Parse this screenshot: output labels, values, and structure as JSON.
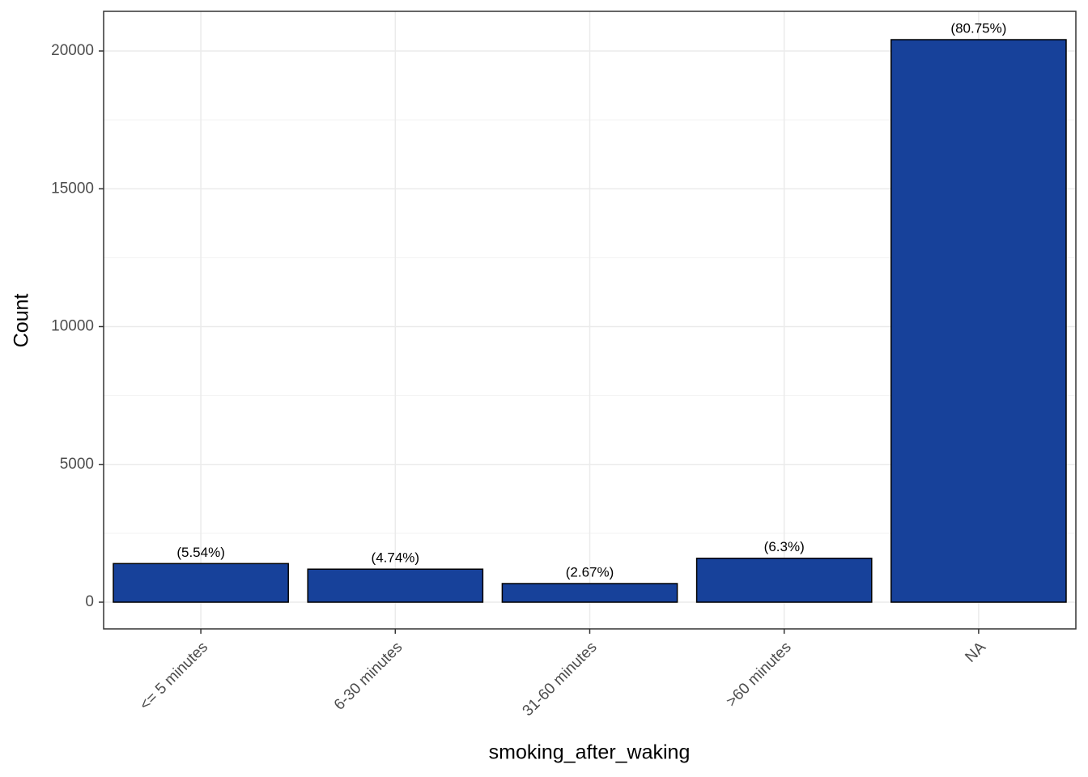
{
  "chart_data": {
    "type": "bar",
    "x_label": "smoking_after_waking",
    "y_label": "Count",
    "categories": [
      "<= 5 minutes",
      "6-30 minutes",
      "31-60 minutes",
      ">60 minutes",
      "NA"
    ],
    "values": [
      1400,
      1198,
      675,
      1593,
      20411
    ],
    "value_labels": [
      "(5.54%)",
      "(4.74%)",
      "(2.67%)",
      "(6.3%)",
      "(80.75%)"
    ],
    "color": "#17419a",
    "ylim": [
      -969,
      21439
    ],
    "yticks": [
      0,
      5000,
      10000,
      15000,
      20000
    ],
    "grid": true
  }
}
